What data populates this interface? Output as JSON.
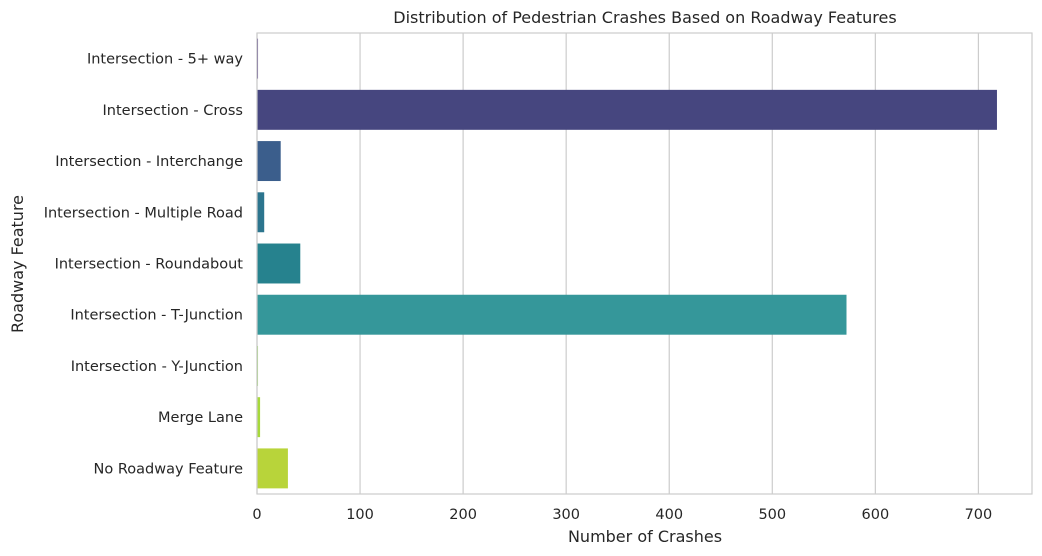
{
  "chart_data": {
    "type": "bar",
    "orientation": "horizontal",
    "title": "Distribution of Pedestrian Crashes Based on Roadway Features",
    "xlabel": "Number of Crashes",
    "ylabel": "Roadway Feature",
    "xlim": [
      0,
      752
    ],
    "xticks": [
      0,
      100,
      200,
      300,
      400,
      500,
      600,
      700
    ],
    "grid": true,
    "categories": [
      "Intersection - 5+ way",
      "Intersection - Cross",
      "Intersection - Interchange",
      "Intersection - Multiple Road",
      "Intersection - Roundabout",
      "Intersection - T-Junction",
      "Intersection - Y-Junction",
      "Merge Lane",
      "No Roadway Feature"
    ],
    "values": [
      1,
      718,
      23,
      7,
      42,
      572,
      1,
      3,
      30
    ],
    "colors": [
      "#472c7a",
      "#46467f",
      "#3b5e8c",
      "#2c758e",
      "#26828e",
      "#35979a",
      "#9fd96e",
      "#a7d93b",
      "#b8d43a"
    ]
  }
}
